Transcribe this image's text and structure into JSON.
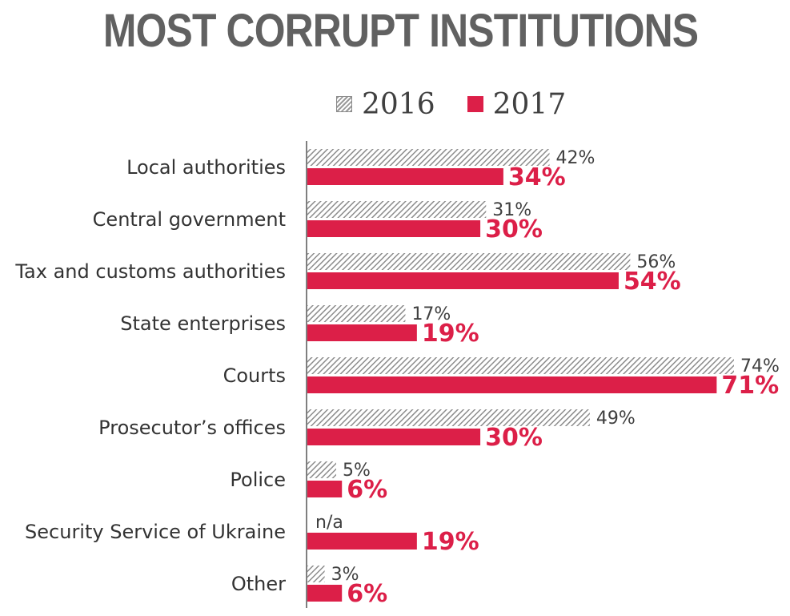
{
  "chart_data": {
    "type": "bar",
    "orientation": "horizontal",
    "title": "MOST CORRUPT INSTITUTIONS",
    "categories": [
      "Local authorities",
      "Central government",
      "Tax and customs authorities",
      "State enterprises",
      "Courts",
      "Prosecutor’s offices",
      "Police",
      "Security Service of Ukraine",
      "Other"
    ],
    "series": [
      {
        "name": "2016",
        "values": [
          42,
          31,
          56,
          17,
          74,
          49,
          5,
          null,
          3
        ],
        "labels": [
          "42%",
          "31%",
          "56%",
          "17%",
          "74%",
          "49%",
          "5%",
          "n/a",
          "3%"
        ],
        "color": "#9a9a9a",
        "pattern": "hatched"
      },
      {
        "name": "2017",
        "values": [
          34,
          30,
          54,
          19,
          71,
          30,
          6,
          19,
          6
        ],
        "labels": [
          "34%",
          "30%",
          "54%",
          "19%",
          "71%",
          "30%",
          "6%",
          "19%",
          "6%"
        ],
        "color": "#dc1f48"
      }
    ],
    "xlim": [
      0,
      74
    ],
    "legend": "top-center",
    "grid": false
  }
}
